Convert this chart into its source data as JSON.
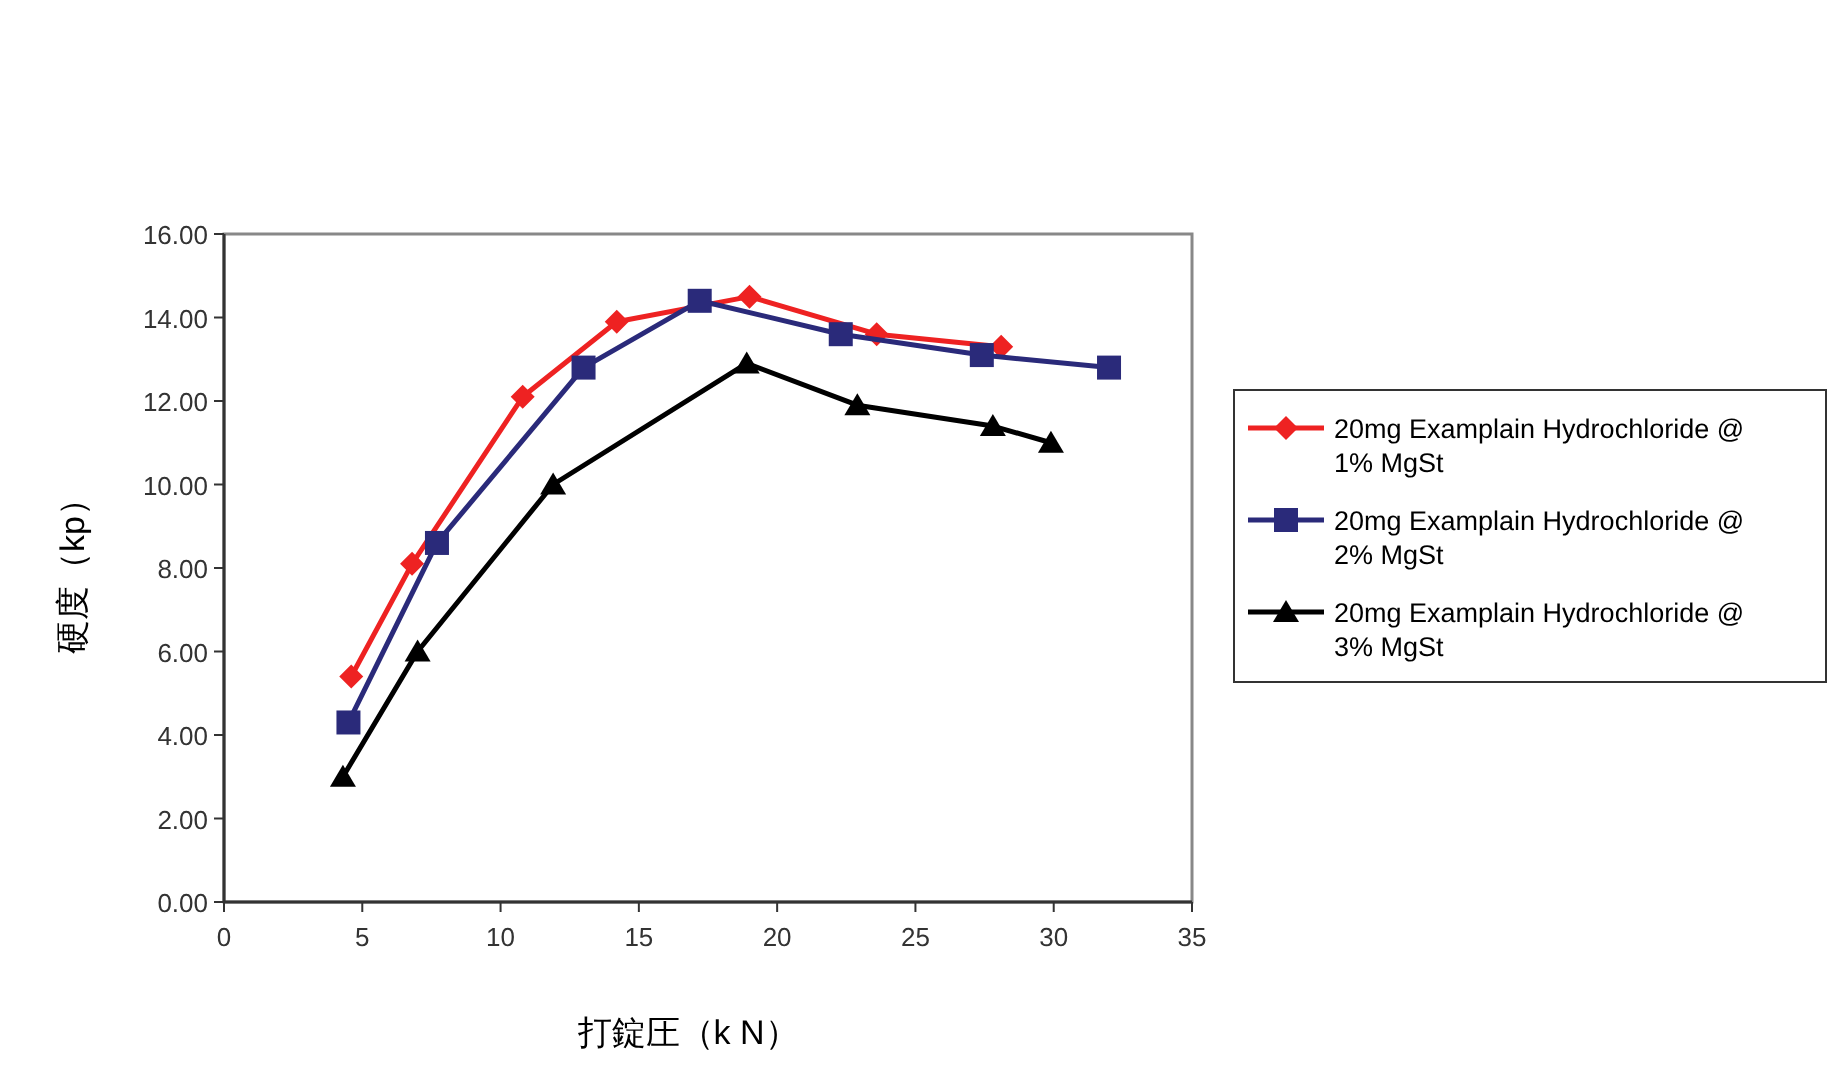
{
  "chart_data": {
    "type": "line",
    "xlabel": "打錠圧（k N）",
    "ylabel": "硬度（kp）",
    "xlim": [
      0,
      35
    ],
    "xticks": [
      0,
      5,
      10,
      15,
      20,
      25,
      30,
      35
    ],
    "ylim": [
      0,
      16
    ],
    "yticks": [
      {
        "value": 0,
        "label": "0.00"
      },
      {
        "value": 2,
        "label": "2.00"
      },
      {
        "value": 4,
        "label": "4.00"
      },
      {
        "value": 6,
        "label": "6.00"
      },
      {
        "value": 8,
        "label": "8.00"
      },
      {
        "value": 10,
        "label": "10.00"
      },
      {
        "value": 12,
        "label": "12.00"
      },
      {
        "value": 14,
        "label": "14.00"
      },
      {
        "value": 16,
        "label": "16.00"
      }
    ],
    "grid": false,
    "legend": "right",
    "series": [
      {
        "name": "20mg Examplain Hydrochloride @ 1% MgSt",
        "color": "#ee2222",
        "marker": "diamond",
        "x": [
          4.6,
          6.8,
          10.8,
          14.2,
          19.0,
          23.6,
          28.1
        ],
        "values": [
          5.4,
          8.1,
          12.1,
          13.9,
          14.5,
          13.6,
          13.3
        ]
      },
      {
        "name": "20mg Examplain Hydrochloride @ 2% MgSt",
        "color": "#2a2a7a",
        "marker": "square",
        "x": [
          4.5,
          7.7,
          13.0,
          17.2,
          22.3,
          27.4,
          32.0
        ],
        "values": [
          4.3,
          8.6,
          12.8,
          14.4,
          13.6,
          13.1,
          12.8
        ]
      },
      {
        "name": "20mg Examplain Hydrochloride @ 3% MgSt",
        "color": "#000000",
        "marker": "triangle",
        "x": [
          4.3,
          7.0,
          11.9,
          18.9,
          22.9,
          27.8,
          29.9
        ],
        "values": [
          3.0,
          6.0,
          10.0,
          12.9,
          11.9,
          11.4,
          11.0
        ]
      }
    ]
  }
}
